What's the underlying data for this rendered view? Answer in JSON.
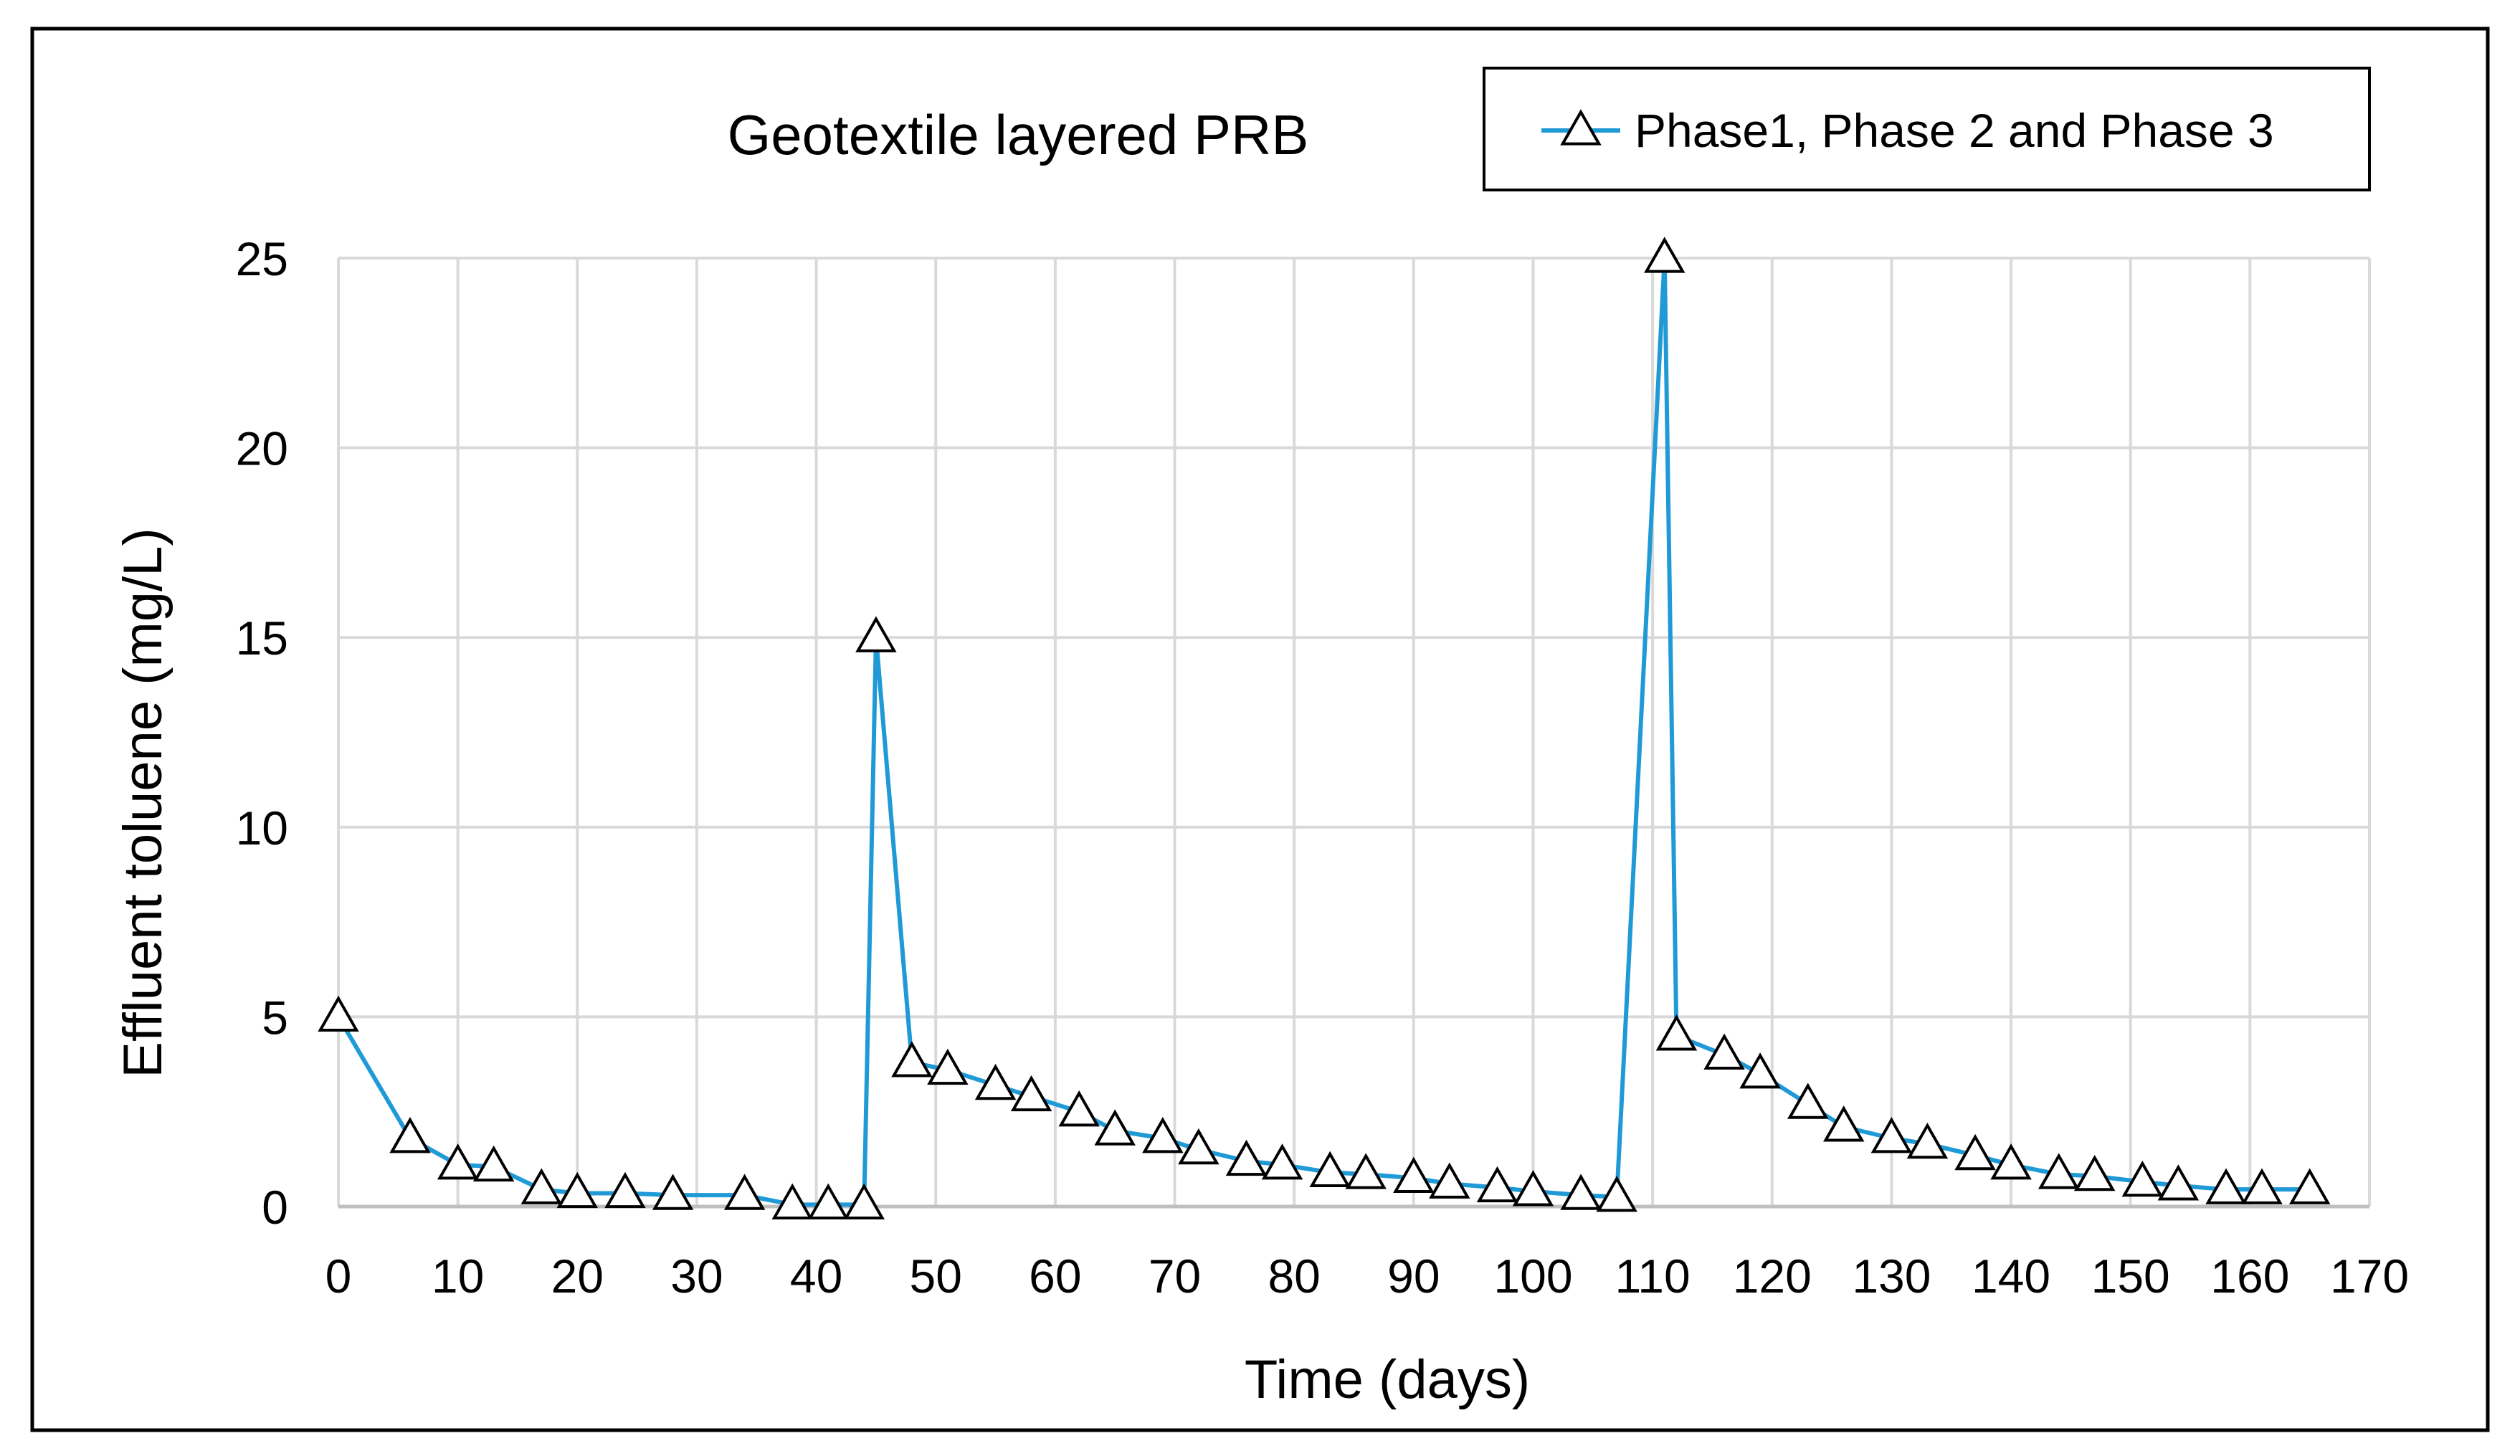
{
  "chart_data": {
    "type": "line",
    "title": "Geotextile layered PRB",
    "xlabel": "Time (days)",
    "ylabel": "Effluent toluene (mg/L)",
    "xlim": [
      0,
      170
    ],
    "ylim": [
      0,
      25
    ],
    "x_ticks": [
      0,
      10,
      20,
      30,
      40,
      50,
      60,
      70,
      80,
      90,
      100,
      110,
      120,
      130,
      140,
      150,
      160,
      170
    ],
    "y_ticks": [
      0,
      5,
      10,
      15,
      20,
      25
    ],
    "x_tick_labels": [
      "0",
      "10",
      "20",
      "30",
      "40",
      "50",
      "60",
      "70",
      "80",
      "90",
      "100",
      "110",
      "120",
      "130",
      "140",
      "150",
      "160",
      "170"
    ],
    "y_tick_labels": [
      "0",
      "5",
      "10",
      "15",
      "20",
      "25"
    ],
    "grid": true,
    "legend_position": "top-right",
    "series": [
      {
        "name": "Phase1, Phase 2 and Phase 3",
        "color": "#1f9ad6",
        "marker": "triangle-open",
        "x": [
          0,
          6,
          10,
          13,
          17,
          20,
          24,
          28,
          34,
          38,
          41,
          44,
          45,
          48,
          51,
          55,
          58,
          62,
          65,
          69,
          72,
          76,
          79,
          83,
          86,
          90,
          93,
          97,
          100,
          104,
          107,
          111,
          112,
          116,
          119,
          123,
          126,
          130,
          133,
          137,
          140,
          144,
          147,
          151,
          154,
          158,
          161,
          165
        ],
        "values": [
          5.0,
          1.8,
          1.1,
          1.05,
          0.45,
          0.35,
          0.35,
          0.3,
          0.3,
          0.05,
          0.05,
          0.05,
          15.0,
          3.8,
          3.6,
          3.2,
          2.9,
          2.5,
          2.0,
          1.8,
          1.5,
          1.2,
          1.1,
          0.9,
          0.85,
          0.75,
          0.6,
          0.5,
          0.4,
          0.3,
          0.25,
          25.0,
          4.5,
          4.0,
          3.5,
          2.7,
          2.1,
          1.8,
          1.65,
          1.35,
          1.1,
          0.85,
          0.8,
          0.65,
          0.55,
          0.45,
          0.45,
          0.45
        ]
      }
    ]
  }
}
